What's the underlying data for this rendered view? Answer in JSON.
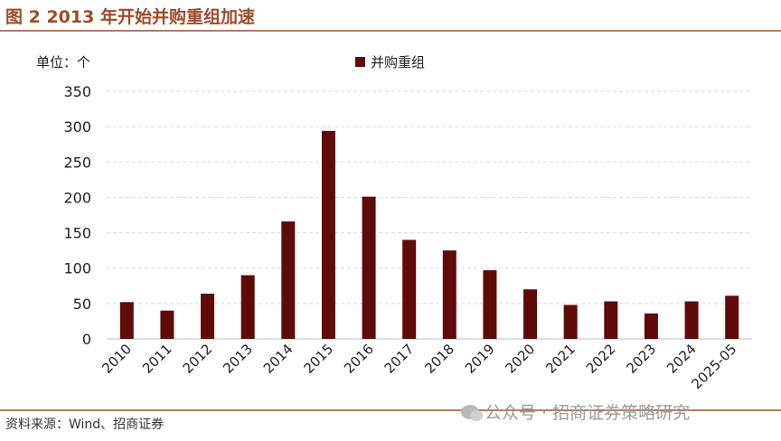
{
  "header": {
    "title": "图 2 2013 年开始并购重组加速"
  },
  "footer": {
    "source": "资料来源：Wind、招商证券",
    "watermark": "公众号 · 招商证券策略研究"
  },
  "chart_data": {
    "type": "bar",
    "unit_label": "单位：个",
    "categories": [
      "2010",
      "2011",
      "2012",
      "2013",
      "2014",
      "2015",
      "2016",
      "2017",
      "2018",
      "2019",
      "2020",
      "2021",
      "2022",
      "2023",
      "2024",
      "2025-05"
    ],
    "series": [
      {
        "name": "并购重组",
        "values": [
          52,
          40,
          64,
          90,
          166,
          294,
          201,
          140,
          125,
          97,
          70,
          48,
          53,
          36,
          53,
          61
        ]
      }
    ],
    "ylim": [
      0,
      350
    ],
    "yticks": [
      0,
      50,
      100,
      150,
      200,
      250,
      300,
      350
    ],
    "grid": true,
    "legend_position": "top-center",
    "colors": {
      "bar": "#5e0b09",
      "title": "#9c4b2b",
      "rule": "#b77a5f"
    }
  }
}
